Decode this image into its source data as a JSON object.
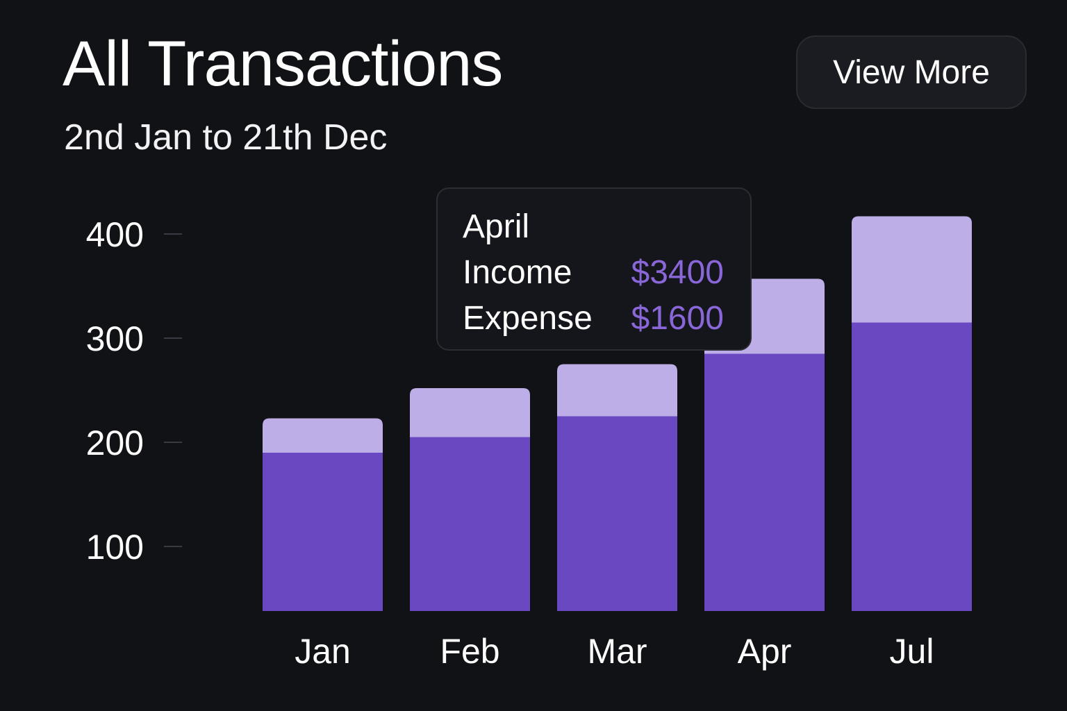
{
  "header": {
    "title": "All Transactions",
    "subtitle": "2nd Jan to 21th Dec",
    "view_more_label": "View More"
  },
  "tooltip": {
    "month": "April",
    "income_label": "Income",
    "income_value": "$3400",
    "expense_label": "Expense",
    "expense_value": "$1600"
  },
  "colors": {
    "background": "#111216",
    "base_series": "#6a48c2",
    "top_series": "#bdaee8",
    "tooltip_value": "#8a67d8"
  },
  "chart_data": {
    "type": "bar",
    "stacked": true,
    "categories": [
      "Jan",
      "Feb",
      "Mar",
      "Apr",
      "Jul"
    ],
    "series": [
      {
        "values": [
          190,
          205,
          225,
          285,
          315
        ]
      },
      {
        "values": [
          33,
          47,
          50,
          72,
          102
        ]
      }
    ],
    "y_ticks": [
      100,
      200,
      300,
      400
    ],
    "ylim": [
      38,
      438
    ],
    "grid": false,
    "legend": "none"
  }
}
